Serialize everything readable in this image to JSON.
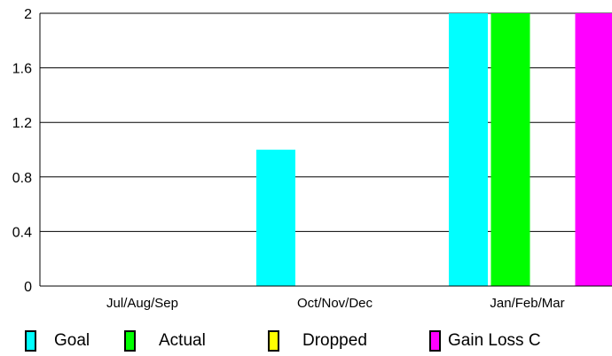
{
  "chart_data": {
    "type": "bar",
    "categories": [
      "Jul/Aug/Sep",
      "Oct/Nov/Dec",
      "Jan/Feb/Mar"
    ],
    "series": [
      {
        "name": "Goal",
        "color": "#00ffff",
        "values": [
          0,
          1,
          2
        ]
      },
      {
        "name": "Actual",
        "color": "#00ff00",
        "values": [
          0,
          0,
          2
        ]
      },
      {
        "name": "Dropped",
        "color": "#ffff00",
        "values": [
          0,
          0,
          0
        ]
      },
      {
        "name": "Gain Loss C",
        "color": "#ff00ff",
        "values": [
          0,
          0,
          2
        ]
      }
    ],
    "ylim": [
      0,
      2
    ],
    "yticks": [
      "0",
      "0.4",
      "0.8",
      "1.2",
      "1.6",
      "2"
    ],
    "grid": true,
    "legend_position": "bottom"
  }
}
